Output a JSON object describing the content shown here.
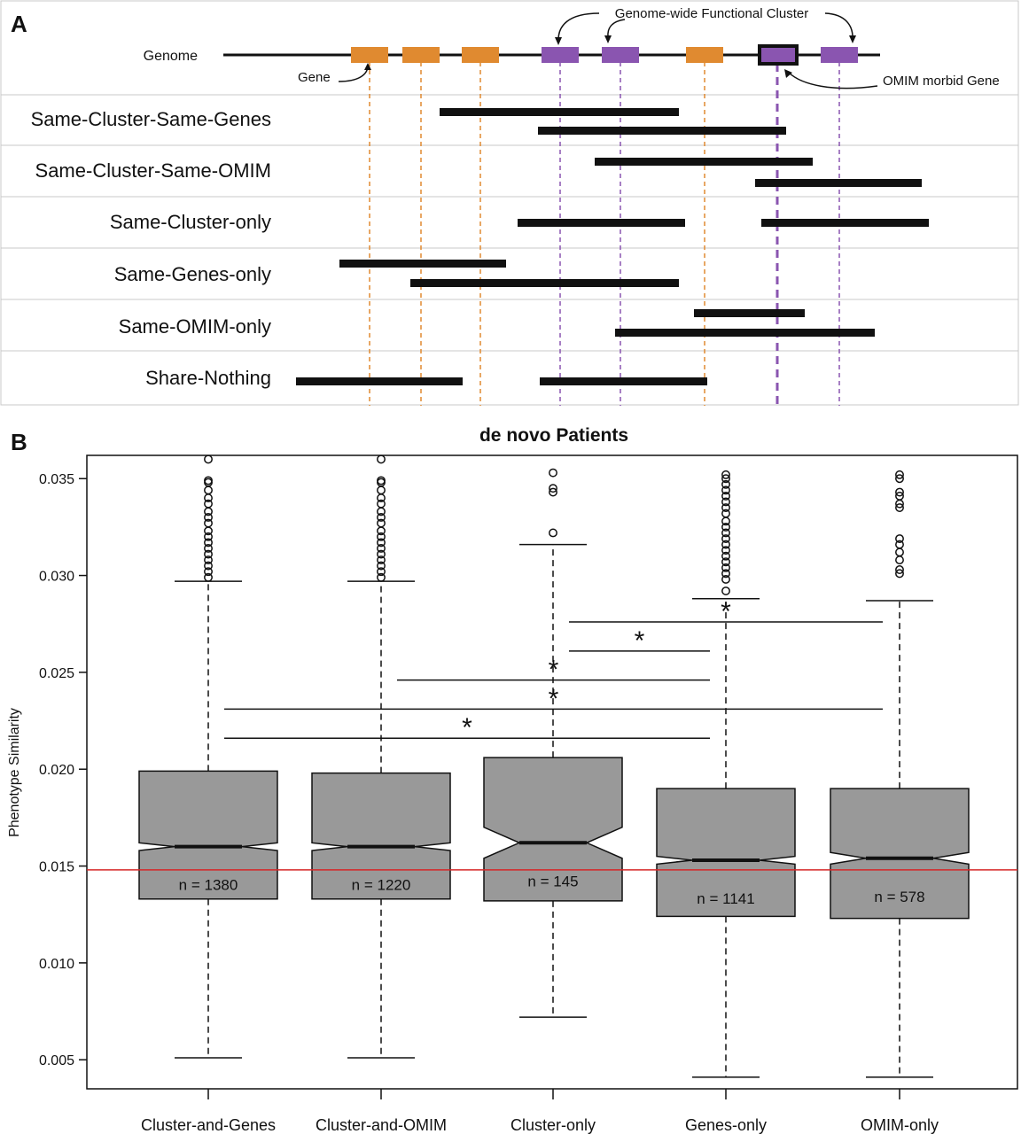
{
  "panel_a": {
    "label": "A",
    "genome_label": "Genome",
    "gene_label": "Gene",
    "cluster_label": "Genome-wide Functional Cluster",
    "omim_label": "OMIM morbid Gene",
    "gene_color": "#e08a30",
    "cluster_color": "#8a55b0",
    "rows": [
      "Same-Cluster-Same-Genes",
      "Same-Cluster-Same-OMIM",
      "Same-Cluster-only",
      "Same-Genes-only",
      "Same-OMIM-only",
      "Share-Nothing"
    ]
  },
  "chart_data": {
    "type": "box",
    "panel_label": "B",
    "title": "de novo Patients",
    "xlabel": "",
    "ylabel": "Phenotype Similarity",
    "ylim": [
      0.0035,
      0.0362
    ],
    "yticks": [
      "0.005",
      "0.010",
      "0.015",
      "0.020",
      "0.025",
      "0.030",
      "0.035"
    ],
    "notched": true,
    "reference_line": {
      "y": 0.0148,
      "color": "#d62728"
    },
    "box_color": "#999999",
    "categories": [
      "Cluster-and-Genes",
      "Cluster-and-OMIM",
      "Cluster-only",
      "Genes-only",
      "OMIM-only"
    ],
    "boxes": [
      {
        "category": "Cluster-and-Genes",
        "whisker_low": 0.0051,
        "q1": 0.0133,
        "median": 0.016,
        "q3": 0.0199,
        "whisker_high": 0.0297,
        "notch_low": 0.0158,
        "notch_high": 0.0162,
        "n_label": "n = 1380",
        "outliers": [
          0.036,
          0.0349,
          0.0348,
          0.0344,
          0.034,
          0.0337,
          0.0333,
          0.033,
          0.0327,
          0.0323,
          0.032,
          0.0317,
          0.0314,
          0.0311,
          0.0308,
          0.0305,
          0.0302,
          0.0299
        ]
      },
      {
        "category": "Cluster-and-OMIM",
        "whisker_low": 0.0051,
        "q1": 0.0133,
        "median": 0.016,
        "q3": 0.0198,
        "whisker_high": 0.0297,
        "notch_low": 0.0158,
        "notch_high": 0.0162,
        "n_label": "n = 1220",
        "outliers": [
          0.036,
          0.0349,
          0.0348,
          0.0344,
          0.034,
          0.0337,
          0.0333,
          0.033,
          0.0327,
          0.0323,
          0.032,
          0.0317,
          0.0314,
          0.0311,
          0.0308,
          0.0305,
          0.0302,
          0.0299
        ]
      },
      {
        "category": "Cluster-only",
        "whisker_low": 0.0072,
        "q1": 0.0132,
        "median": 0.0162,
        "q3": 0.0206,
        "whisker_high": 0.0316,
        "notch_low": 0.0154,
        "notch_high": 0.017,
        "n_label": "n = 145",
        "outliers": [
          0.0353,
          0.0345,
          0.0343,
          0.0322
        ]
      },
      {
        "category": "Genes-only",
        "whisker_low": 0.0041,
        "q1": 0.0124,
        "median": 0.0153,
        "q3": 0.019,
        "whisker_high": 0.0288,
        "notch_low": 0.0151,
        "notch_high": 0.0155,
        "n_label": "n = 1141",
        "outliers": [
          0.0352,
          0.035,
          0.0347,
          0.0344,
          0.0341,
          0.0338,
          0.0335,
          0.0332,
          0.0328,
          0.0325,
          0.0322,
          0.0319,
          0.0316,
          0.0313,
          0.031,
          0.0307,
          0.0304,
          0.0301,
          0.0298,
          0.0292
        ]
      },
      {
        "category": "OMIM-only",
        "whisker_low": 0.0041,
        "q1": 0.0123,
        "median": 0.0154,
        "q3": 0.019,
        "whisker_high": 0.0287,
        "notch_low": 0.0151,
        "notch_high": 0.0157,
        "n_label": "n = 578",
        "outliers": [
          0.0352,
          0.035,
          0.0343,
          0.0341,
          0.0337,
          0.0335,
          0.0319,
          0.0316,
          0.0312,
          0.0308,
          0.0303,
          0.0301
        ]
      }
    ],
    "significance": [
      {
        "from": "Cluster-only",
        "to": "OMIM-only",
        "y": 0.0276,
        "label": "*"
      },
      {
        "from": "Cluster-only",
        "to": "Genes-only",
        "y": 0.0261,
        "label": "*"
      },
      {
        "from": "Cluster-and-OMIM",
        "to": "Genes-only",
        "y": 0.0246,
        "label": "*"
      },
      {
        "from": "Cluster-and-Genes",
        "to": "OMIM-only",
        "y": 0.0231,
        "label": "*"
      },
      {
        "from": "Cluster-and-Genes",
        "to": "Genes-only",
        "y": 0.0216,
        "label": "*"
      }
    ]
  }
}
